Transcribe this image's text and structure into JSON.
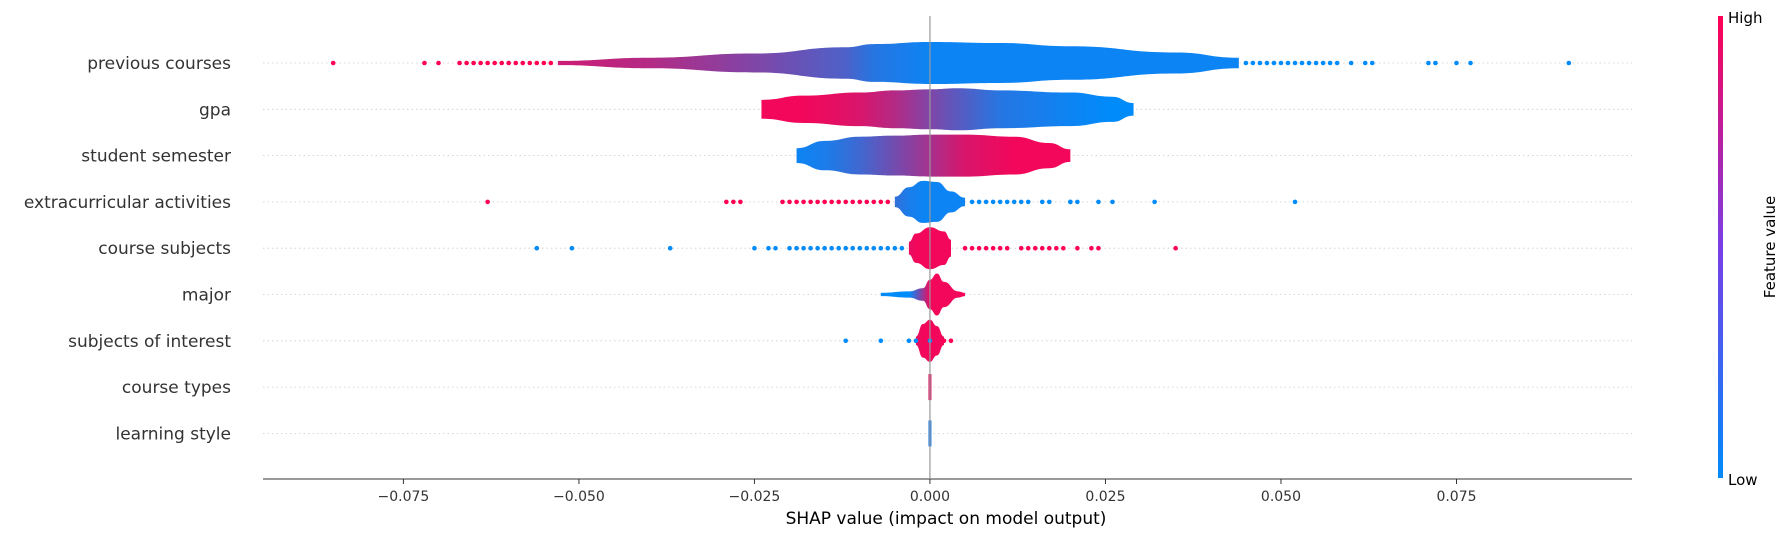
{
  "chart_data": {
    "type": "violin",
    "xlabel": "SHAP value (impact on model output)",
    "xlim": [
      -0.095,
      0.1
    ],
    "xticks": [
      -0.075,
      -0.05,
      -0.025,
      0.0,
      0.025,
      0.05,
      0.075
    ],
    "xtick_labels": [
      "−0.075",
      "−0.050",
      "−0.025",
      "0.000",
      "0.025",
      "0.050",
      "0.075"
    ],
    "colorbar": {
      "label": "Feature value",
      "high_label": "High",
      "low_label": "Low",
      "low_color": "#008bfb",
      "high_color": "#ff0052"
    },
    "features": [
      {
        "name": "previous courses",
        "max_half_width": 0.55,
        "violin": [
          [
            -0.053,
            0.1,
            0.8
          ],
          [
            -0.04,
            0.25,
            0.7
          ],
          [
            -0.025,
            0.45,
            0.5
          ],
          [
            -0.012,
            0.75,
            0.3
          ],
          [
            -0.008,
            0.9,
            0.15
          ],
          [
            0.0,
            1.0,
            0.05
          ],
          [
            0.01,
            0.95,
            0.05
          ],
          [
            0.02,
            0.8,
            0.05
          ],
          [
            0.035,
            0.5,
            0.05
          ],
          [
            0.044,
            0.25,
            0.05
          ]
        ],
        "outliers": [
          [
            -0.085,
            1
          ],
          [
            -0.072,
            1
          ],
          [
            -0.07,
            1
          ],
          [
            -0.067,
            1
          ],
          [
            -0.066,
            1
          ],
          [
            -0.065,
            1
          ],
          [
            -0.064,
            1
          ],
          [
            -0.063,
            1
          ],
          [
            -0.062,
            1
          ],
          [
            -0.061,
            1
          ],
          [
            -0.06,
            1
          ],
          [
            -0.059,
            1
          ],
          [
            -0.058,
            1
          ],
          [
            -0.057,
            1
          ],
          [
            -0.056,
            1
          ],
          [
            -0.055,
            1
          ],
          [
            -0.054,
            1
          ],
          [
            0.045,
            0
          ],
          [
            0.046,
            0
          ],
          [
            0.047,
            0
          ],
          [
            0.048,
            0
          ],
          [
            0.049,
            0
          ],
          [
            0.05,
            0
          ],
          [
            0.051,
            0
          ],
          [
            0.052,
            0
          ],
          [
            0.053,
            0
          ],
          [
            0.054,
            0
          ],
          [
            0.055,
            0
          ],
          [
            0.056,
            0
          ],
          [
            0.057,
            0
          ],
          [
            0.058,
            0
          ],
          [
            0.06,
            0
          ],
          [
            0.062,
            0
          ],
          [
            0.063,
            0
          ],
          [
            0.071,
            0
          ],
          [
            0.072,
            0
          ],
          [
            0.075,
            0
          ],
          [
            0.077,
            0
          ],
          [
            0.091,
            0
          ]
        ]
      },
      {
        "name": "gpa",
        "max_half_width": 0.55,
        "violin": [
          [
            -0.024,
            0.45,
            0.95
          ],
          [
            -0.018,
            0.65,
            0.95
          ],
          [
            -0.01,
            0.8,
            0.85
          ],
          [
            -0.005,
            0.9,
            0.7
          ],
          [
            0.0,
            0.95,
            0.5
          ],
          [
            0.004,
            1.0,
            0.35
          ],
          [
            0.01,
            0.9,
            0.15
          ],
          [
            0.02,
            0.8,
            0.05
          ],
          [
            0.026,
            0.6,
            0.0
          ],
          [
            0.029,
            0.3,
            0.0
          ]
        ],
        "outliers": []
      },
      {
        "name": "student semester",
        "max_half_width": 0.55,
        "violin": [
          [
            -0.019,
            0.35,
            0.05
          ],
          [
            -0.015,
            0.7,
            0.1
          ],
          [
            -0.01,
            0.9,
            0.25
          ],
          [
            -0.005,
            0.95,
            0.45
          ],
          [
            0.0,
            1.0,
            0.65
          ],
          [
            0.005,
            1.0,
            0.85
          ],
          [
            0.012,
            0.9,
            0.95
          ],
          [
            0.017,
            0.6,
            0.95
          ],
          [
            0.02,
            0.3,
            0.95
          ]
        ],
        "outliers": []
      },
      {
        "name": "extracurricular activities",
        "max_half_width": 0.55,
        "violin": [
          [
            -0.005,
            0.25,
            0.2
          ],
          [
            -0.003,
            0.7,
            0.1
          ],
          [
            -0.001,
            1.0,
            0.05
          ],
          [
            0.001,
            0.95,
            0.05
          ],
          [
            0.003,
            0.5,
            0.05
          ],
          [
            0.005,
            0.2,
            0.05
          ]
        ],
        "outliers": [
          [
            -0.063,
            1
          ],
          [
            -0.029,
            1
          ],
          [
            -0.028,
            1
          ],
          [
            -0.027,
            1
          ],
          [
            -0.021,
            1
          ],
          [
            -0.02,
            1
          ],
          [
            -0.019,
            1
          ],
          [
            -0.018,
            1
          ],
          [
            -0.017,
            1
          ],
          [
            -0.016,
            1
          ],
          [
            -0.015,
            1
          ],
          [
            -0.014,
            1
          ],
          [
            -0.013,
            1
          ],
          [
            -0.012,
            1
          ],
          [
            -0.011,
            1
          ],
          [
            -0.01,
            1
          ],
          [
            -0.009,
            1
          ],
          [
            -0.008,
            1
          ],
          [
            -0.007,
            1
          ],
          [
            -0.006,
            1
          ],
          [
            0.006,
            0
          ],
          [
            0.007,
            0
          ],
          [
            0.008,
            0
          ],
          [
            0.009,
            0
          ],
          [
            0.01,
            0
          ],
          [
            0.011,
            0
          ],
          [
            0.012,
            0
          ],
          [
            0.013,
            0
          ],
          [
            0.014,
            0
          ],
          [
            0.016,
            0
          ],
          [
            0.017,
            0
          ],
          [
            0.02,
            0
          ],
          [
            0.02,
            0
          ],
          [
            0.021,
            0
          ],
          [
            0.024,
            0
          ],
          [
            0.026,
            0
          ],
          [
            0.032,
            0
          ],
          [
            0.052,
            0
          ]
        ]
      },
      {
        "name": "course subjects",
        "max_half_width": 0.55,
        "violin": [
          [
            -0.003,
            0.3,
            0.9
          ],
          [
            -0.002,
            0.7,
            0.95
          ],
          [
            0.0,
            1.0,
            0.95
          ],
          [
            0.002,
            0.8,
            0.95
          ],
          [
            0.003,
            0.4,
            0.95
          ]
        ],
        "outliers": [
          [
            -0.056,
            0
          ],
          [
            -0.051,
            0
          ],
          [
            -0.037,
            0
          ],
          [
            -0.025,
            0
          ],
          [
            -0.023,
            0
          ],
          [
            -0.022,
            0
          ],
          [
            -0.02,
            0
          ],
          [
            -0.019,
            0
          ],
          [
            -0.018,
            0
          ],
          [
            -0.017,
            0
          ],
          [
            -0.016,
            0
          ],
          [
            -0.015,
            0
          ],
          [
            -0.014,
            0
          ],
          [
            -0.013,
            0
          ],
          [
            -0.012,
            0
          ],
          [
            -0.011,
            0
          ],
          [
            -0.01,
            0
          ],
          [
            -0.009,
            0
          ],
          [
            -0.008,
            0
          ],
          [
            -0.007,
            0
          ],
          [
            -0.006,
            0
          ],
          [
            -0.005,
            0
          ],
          [
            -0.004,
            0
          ],
          [
            0.005,
            1
          ],
          [
            0.006,
            1
          ],
          [
            0.007,
            1
          ],
          [
            0.008,
            1
          ],
          [
            0.009,
            1
          ],
          [
            0.01,
            1
          ],
          [
            0.011,
            1
          ],
          [
            0.013,
            1
          ],
          [
            0.014,
            1
          ],
          [
            0.015,
            1
          ],
          [
            0.016,
            1
          ],
          [
            0.017,
            1
          ],
          [
            0.018,
            1
          ],
          [
            0.019,
            1
          ],
          [
            0.021,
            1
          ],
          [
            0.023,
            1
          ],
          [
            0.024,
            1
          ],
          [
            0.035,
            1
          ]
        ]
      },
      {
        "name": "major",
        "max_half_width": 0.55,
        "violin": [
          [
            -0.007,
            0.08,
            0.0
          ],
          [
            -0.003,
            0.15,
            0.0
          ],
          [
            -0.001,
            0.3,
            0.6
          ],
          [
            0.0,
            0.7,
            0.95
          ],
          [
            0.001,
            1.0,
            0.95
          ],
          [
            0.002,
            0.6,
            0.95
          ],
          [
            0.004,
            0.15,
            0.95
          ],
          [
            0.005,
            0.08,
            0.95
          ]
        ],
        "outliers": []
      },
      {
        "name": "subjects of interest",
        "max_half_width": 0.55,
        "violin": [
          [
            -0.002,
            0.2,
            0.9
          ],
          [
            -0.001,
            0.8,
            0.95
          ],
          [
            0.0,
            1.0,
            0.95
          ],
          [
            0.001,
            0.7,
            0.95
          ],
          [
            0.002,
            0.2,
            0.95
          ]
        ],
        "outliers": [
          [
            -0.012,
            0
          ],
          [
            -0.007,
            0
          ],
          [
            -0.003,
            0
          ],
          [
            -0.002,
            0
          ],
          [
            0.0,
            0
          ],
          [
            0.002,
            1
          ],
          [
            0.003,
            1
          ]
        ]
      },
      {
        "name": "course types",
        "max_half_width": 0.55,
        "violin": [
          [
            0.0,
            0.5,
            0.9
          ],
          [
            0.0,
            0.5,
            0.9
          ]
        ],
        "outliers": []
      },
      {
        "name": "learning style",
        "max_half_width": 0.55,
        "violin": [
          [
            0.0,
            0.5,
            0.1
          ],
          [
            0.0,
            0.5,
            0.1
          ]
        ],
        "outliers": []
      }
    ]
  }
}
